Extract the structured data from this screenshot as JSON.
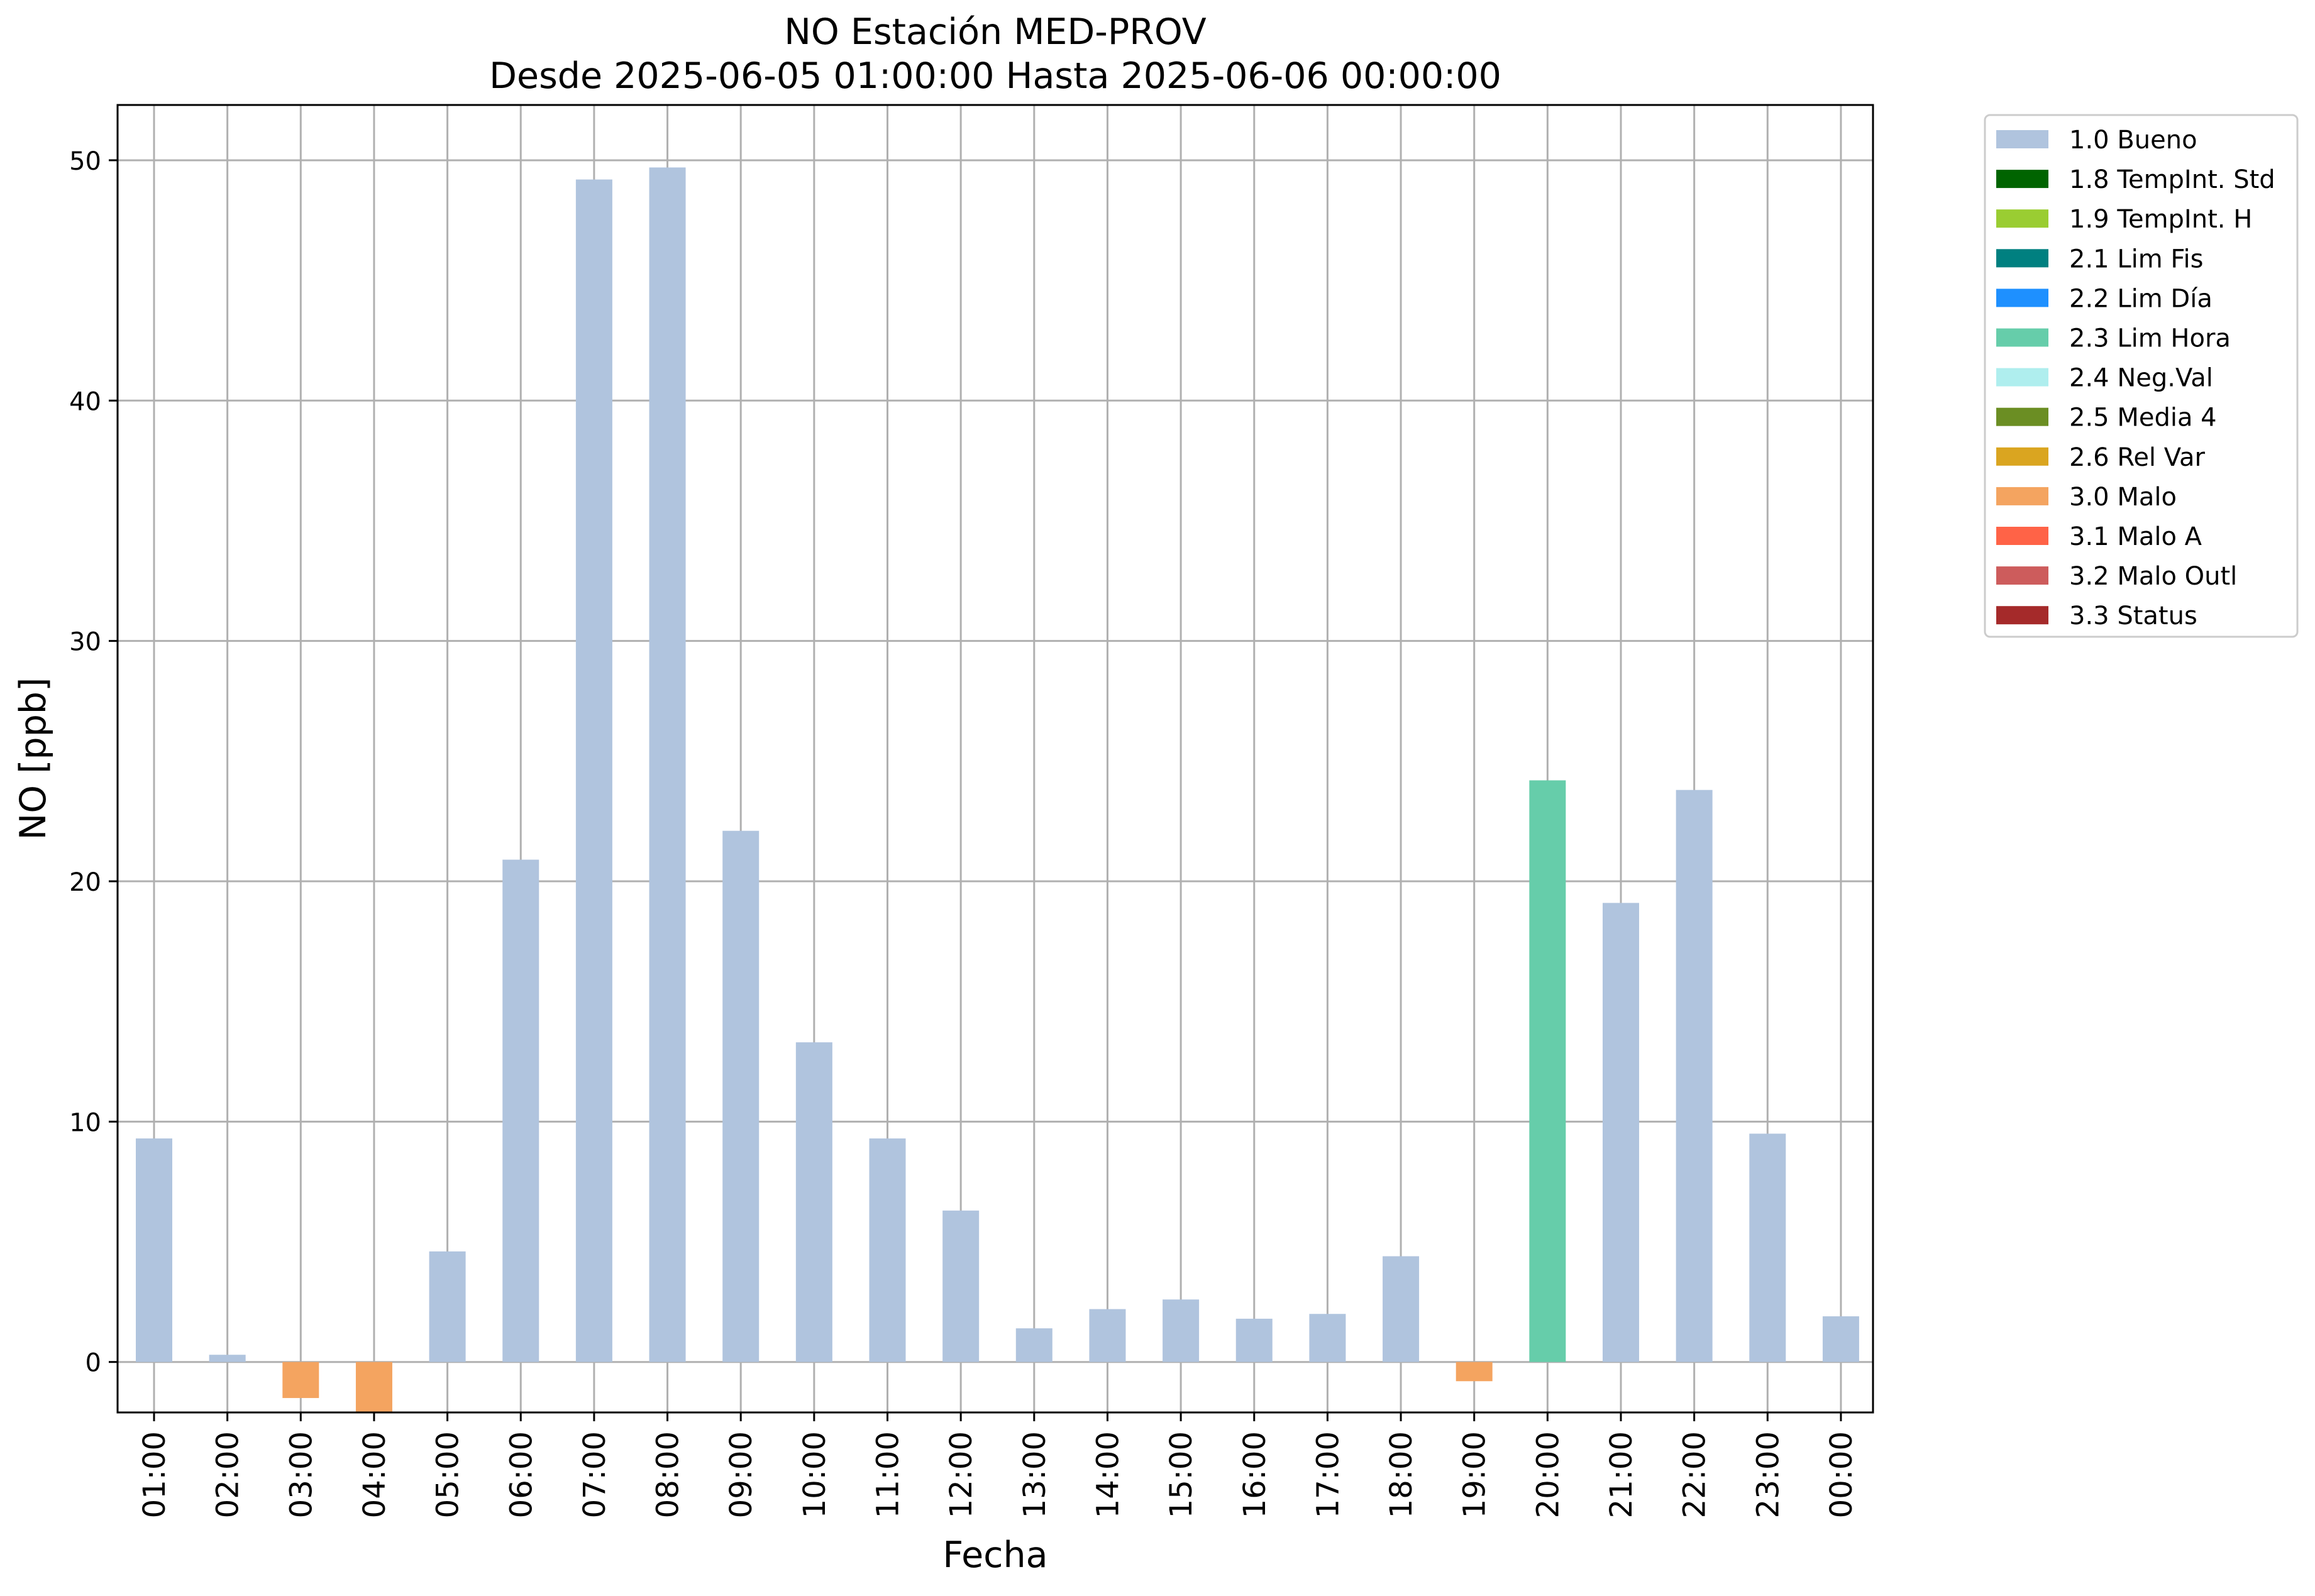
{
  "chart_data": {
    "type": "bar",
    "title": "NO Estación MED-PROV",
    "subtitle": "Desde 2025-06-05 01:00:00 Hasta 2025-06-06 00:00:00",
    "xlabel": "Fecha",
    "ylabel": "NO [ppb]",
    "ylim": [
      -2.1,
      52.3
    ],
    "yticks": [
      0,
      10,
      20,
      30,
      40,
      50
    ],
    "grid": true,
    "legend_position": "outside-top-right",
    "categories": [
      "01:00",
      "02:00",
      "03:00",
      "04:00",
      "05:00",
      "06:00",
      "07:00",
      "08:00",
      "09:00",
      "10:00",
      "11:00",
      "12:00",
      "13:00",
      "14:00",
      "15:00",
      "16:00",
      "17:00",
      "18:00",
      "19:00",
      "20:00",
      "21:00",
      "22:00",
      "23:00",
      "00:00"
    ],
    "values": [
      9.3,
      0.3,
      -1.5,
      -2.1,
      4.6,
      20.9,
      49.2,
      49.7,
      22.1,
      13.3,
      9.3,
      6.3,
      1.4,
      2.2,
      2.6,
      1.8,
      2.0,
      4.4,
      -0.8,
      24.2,
      19.1,
      23.8,
      9.5,
      1.9
    ],
    "flags": [
      "1.0",
      "1.0",
      "3.0",
      "3.0",
      "1.0",
      "1.0",
      "1.0",
      "1.0",
      "1.0",
      "1.0",
      "1.0",
      "1.0",
      "1.0",
      "1.0",
      "1.0",
      "1.0",
      "1.0",
      "1.0",
      "3.0",
      "2.3",
      "1.0",
      "1.0",
      "1.0",
      "1.0"
    ],
    "legend": [
      {
        "code": "1.0",
        "label": "1.0 Bueno",
        "color": "#b0c4de"
      },
      {
        "code": "1.8",
        "label": "1.8 TempInt. Std",
        "color": "#006400"
      },
      {
        "code": "1.9",
        "label": "1.9 TempInt. H",
        "color": "#9acd32"
      },
      {
        "code": "2.1",
        "label": "2.1 Lim Fis",
        "color": "#008080"
      },
      {
        "code": "2.2",
        "label": "2.2 Lim Día",
        "color": "#1e90ff"
      },
      {
        "code": "2.3",
        "label": "2.3 Lim Hora",
        "color": "#66cdaa"
      },
      {
        "code": "2.4",
        "label": "2.4 Neg.Val",
        "color": "#afeeee"
      },
      {
        "code": "2.5",
        "label": "2.5 Media 4",
        "color": "#6b8e23"
      },
      {
        "code": "2.6",
        "label": "2.6 Rel Var",
        "color": "#daa520"
      },
      {
        "code": "3.0",
        "label": "3.0 Malo",
        "color": "#f4a460"
      },
      {
        "code": "3.1",
        "label": "3.1 Malo A",
        "color": "#ff6347"
      },
      {
        "code": "3.2",
        "label": "3.2 Malo Outl",
        "color": "#cd5c5c"
      },
      {
        "code": "3.3",
        "label": "3.3 Status",
        "color": "#a52a2a"
      }
    ]
  }
}
